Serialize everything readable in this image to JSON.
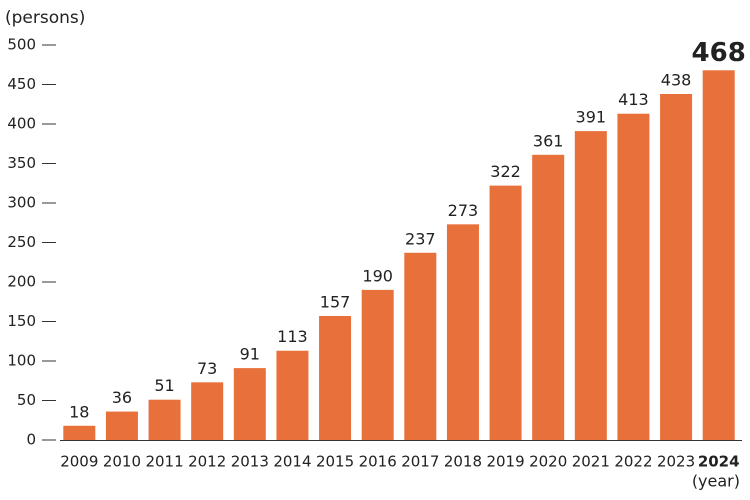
{
  "chart_data": {
    "type": "bar",
    "y_label": "(persons)",
    "x_label": "(year)",
    "categories": [
      "2009",
      "2010",
      "2011",
      "2012",
      "2013",
      "2014",
      "2015",
      "2016",
      "2017",
      "2018",
      "2019",
      "2020",
      "2021",
      "2022",
      "2023",
      "2024"
    ],
    "values": [
      18,
      36,
      51,
      73,
      91,
      113,
      157,
      190,
      237,
      273,
      322,
      361,
      391,
      413,
      438,
      468
    ],
    "color": "#e8703a",
    "ylim": [
      0,
      500
    ],
    "yticks": [
      0,
      50,
      100,
      150,
      200,
      250,
      300,
      350,
      400,
      450,
      500
    ],
    "grid": false
  }
}
